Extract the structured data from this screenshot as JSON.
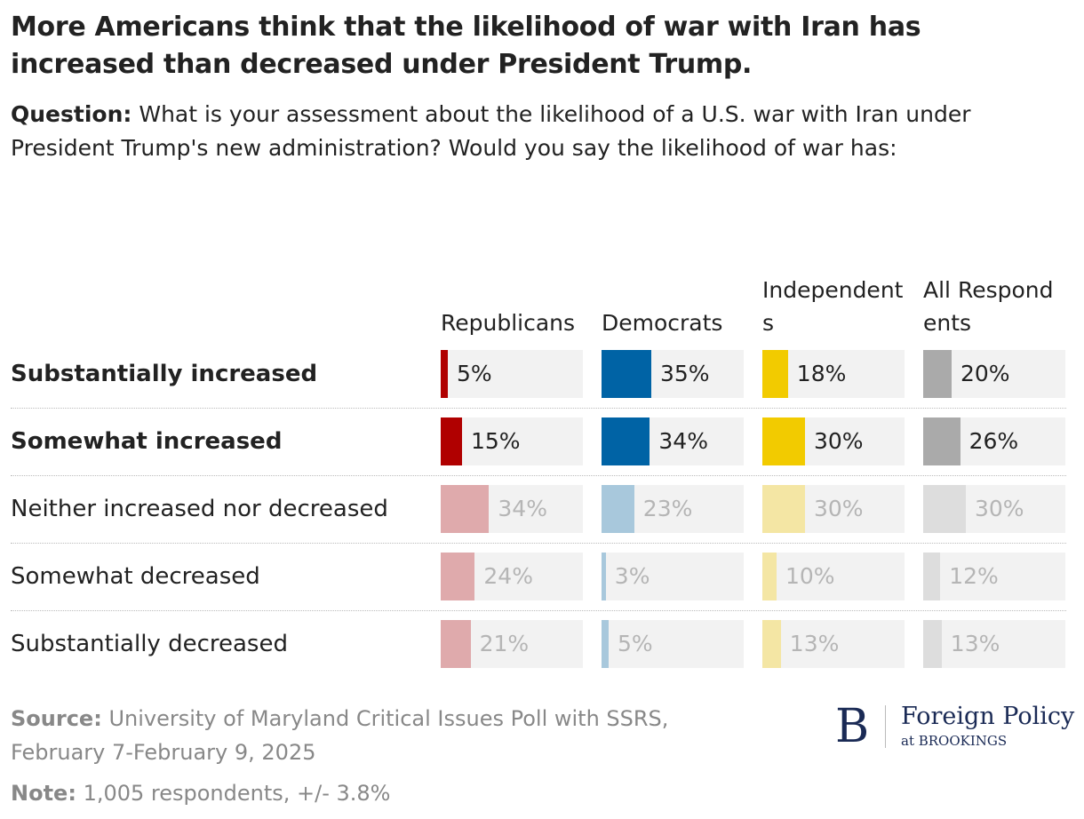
{
  "chart_data": {
    "type": "bar",
    "title": "More Americans think that the likelihood of war with Iran has increased than decreased under President Trump.",
    "subtitle_label": "Question:",
    "subtitle": "What is your assessment about the likelihood of a U.S. war with Iran under President Trump's new administration? Would you say the likelihood of war has:",
    "categories": [
      "Substantially increased",
      "Somewhat increased",
      "Neither increased nor decreased",
      "Somewhat decreased",
      "Substantially decreased"
    ],
    "highlighted": [
      true,
      true,
      false,
      false,
      false
    ],
    "xlim": [
      0,
      100
    ],
    "series": [
      {
        "name": "Republicans",
        "color": "#b00000",
        "faded_color": "#dfaaac",
        "values": [
          5,
          15,
          34,
          24,
          21
        ],
        "value_labels": [
          "5%",
          "15%",
          "34%",
          "24%",
          "21%"
        ]
      },
      {
        "name": "Democrats",
        "color": "#0063a5",
        "faded_color": "#a8c8dc",
        "values": [
          35,
          34,
          23,
          3,
          5
        ],
        "value_labels": [
          "35%",
          "34%",
          "23%",
          "3%",
          "5%"
        ]
      },
      {
        "name": "Independents",
        "color": "#f2cb00",
        "faded_color": "#f4e6a4",
        "values": [
          18,
          30,
          30,
          10,
          13
        ],
        "value_labels": [
          "18%",
          "30%",
          "30%",
          "10%",
          "13%"
        ]
      },
      {
        "name": "All Respondents",
        "color": "#aaaaaa",
        "faded_color": "#dddddd",
        "values": [
          20,
          26,
          30,
          12,
          13
        ],
        "value_labels": [
          "20%",
          "26%",
          "30%",
          "12%",
          "13%"
        ]
      }
    ],
    "source_label": "Source:",
    "source": "University of Maryland Critical Issues Poll with SSRS, February 7-February 9, 2025",
    "note_label": "Note:",
    "note": "1,005 respondents, +/- 3.8%",
    "logo": {
      "initial": "B",
      "name": "Foreign Policy",
      "sub": "at BROOKINGS"
    }
  }
}
